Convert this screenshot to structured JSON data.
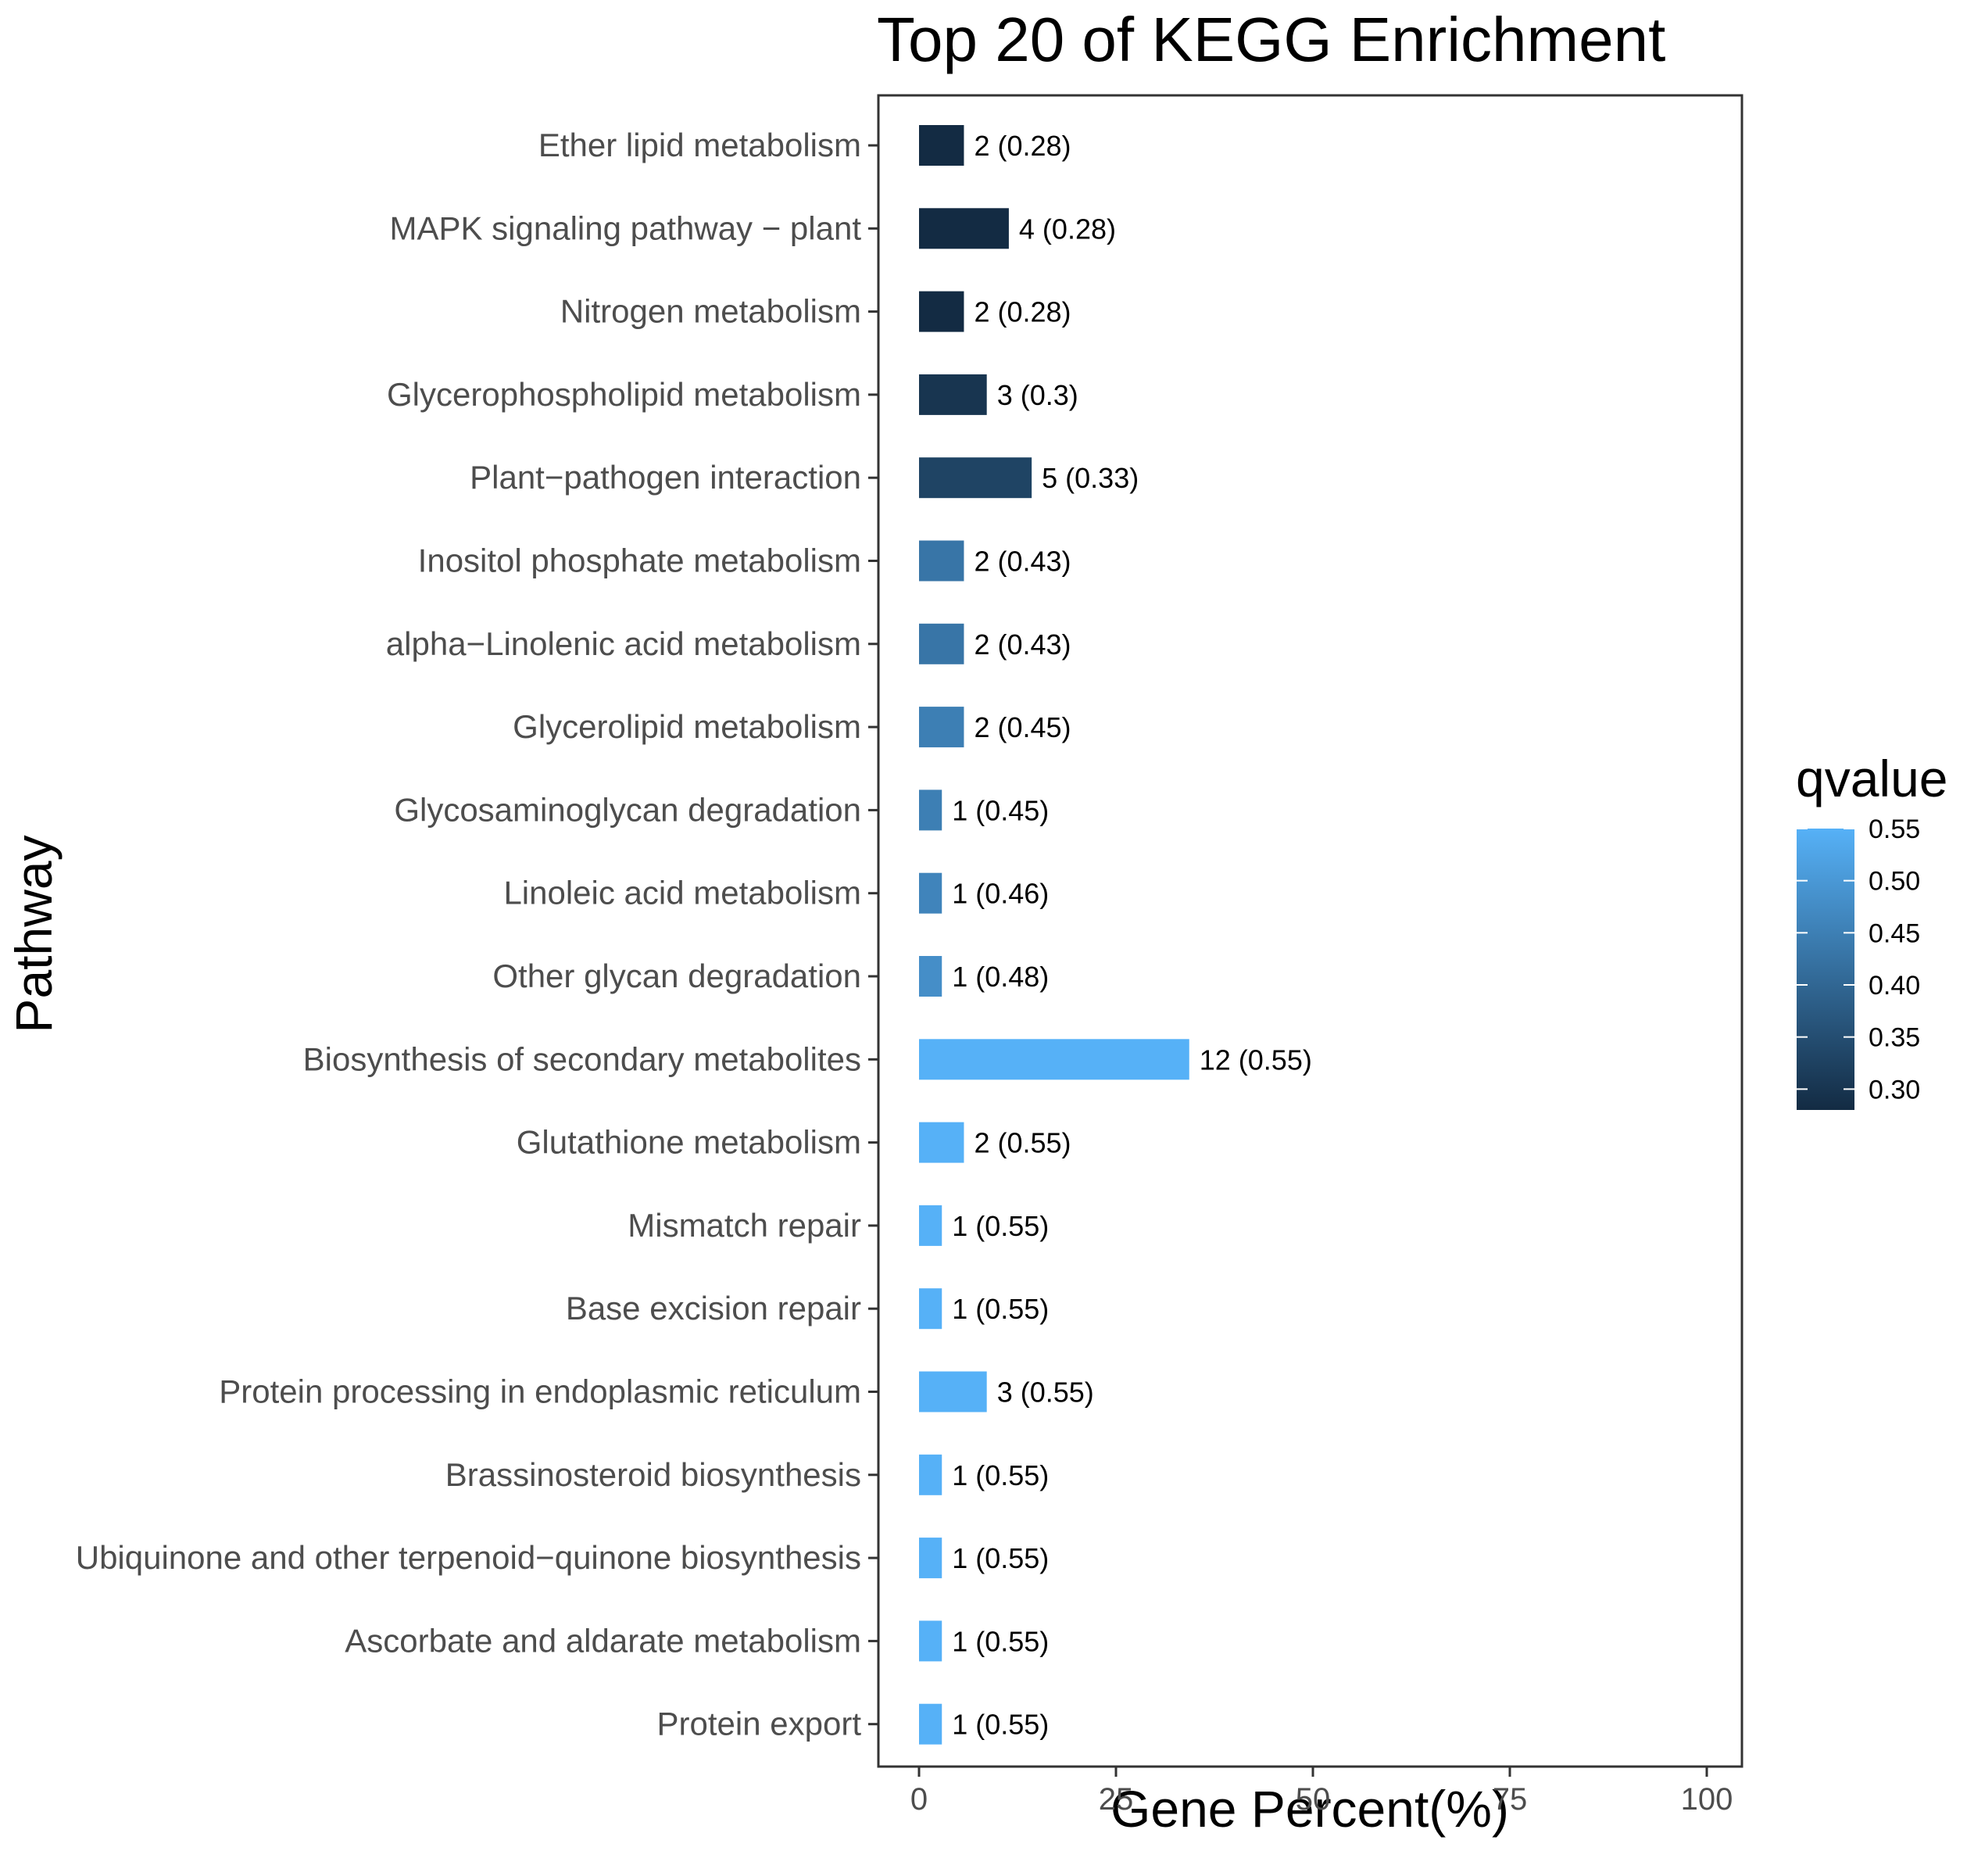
{
  "chart_data": {
    "type": "bar",
    "orientation": "horizontal",
    "title": "Top 20 of KEGG Enrichment",
    "xlabel": "Gene Percent(%)",
    "ylabel": "Pathway",
    "xlim": [
      0,
      100
    ],
    "xticks": [
      0,
      25,
      50,
      75,
      100
    ],
    "grid": false,
    "legend": {
      "title": "qvalue",
      "position": "right",
      "ticks": [
        "0.55",
        "0.50",
        "0.45",
        "0.40",
        "0.35",
        "0.30"
      ],
      "tick_values": [
        0.55,
        0.5,
        0.45,
        0.4,
        0.35,
        0.3
      ],
      "range": [
        0.28,
        0.55
      ],
      "low_color": "#132B43",
      "high_color": "#56B1F7"
    },
    "categories": [
      "Ether lipid metabolism",
      "MAPK signaling pathway − plant",
      "Nitrogen metabolism",
      "Glycerophospholipid metabolism",
      "Plant−pathogen interaction",
      "Inositol phosphate metabolism",
      "alpha−Linolenic acid metabolism",
      "Glycerolipid metabolism",
      "Glycosaminoglycan degradation",
      "Linoleic acid metabolism",
      "Other glycan degradation",
      "Biosynthesis of secondary metabolites",
      "Glutathione metabolism",
      "Mismatch repair",
      "Base excision repair",
      "Protein processing in endoplasmic reticulum",
      "Brassinosteroid biosynthesis",
      "Ubiquinone and other terpenoid−quinone biosynthesis",
      "Ascorbate and aldarate metabolism",
      "Protein export"
    ],
    "values": [
      5.7,
      11.4,
      5.7,
      8.6,
      14.3,
      5.7,
      5.7,
      5.7,
      2.9,
      2.9,
      2.9,
      34.3,
      5.7,
      2.9,
      2.9,
      8.6,
      2.9,
      2.9,
      2.9,
      2.9
    ],
    "qvalues": [
      0.28,
      0.28,
      0.28,
      0.3,
      0.33,
      0.43,
      0.43,
      0.45,
      0.45,
      0.46,
      0.48,
      0.55,
      0.55,
      0.55,
      0.55,
      0.55,
      0.55,
      0.55,
      0.55,
      0.55
    ],
    "labels": [
      "2 (0.28)",
      "4 (0.28)",
      "2 (0.28)",
      "3 (0.3)",
      "5 (0.33)",
      "2 (0.43)",
      "2 (0.43)",
      "2 (0.45)",
      "1 (0.45)",
      "1 (0.46)",
      "1 (0.48)",
      "12 (0.55)",
      "2 (0.55)",
      "1 (0.55)",
      "1 (0.55)",
      "3 (0.55)",
      "1 (0.55)",
      "1 (0.55)",
      "1 (0.55)",
      "1 (0.55)"
    ]
  }
}
